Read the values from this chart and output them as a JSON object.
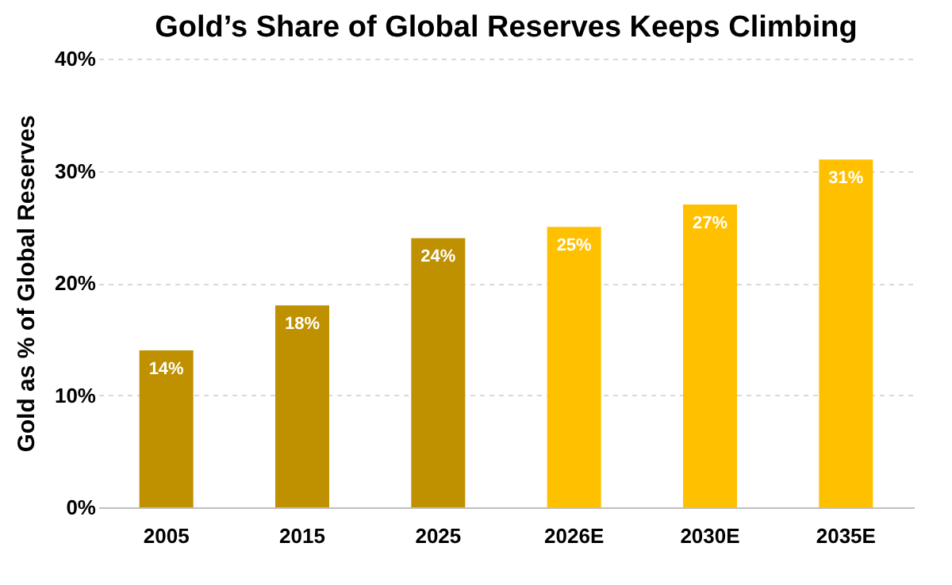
{
  "chart_data": {
    "type": "bar",
    "title": "Gold’s Share of Global Reserves Keeps Climbing",
    "ylabel": "Gold as % of Global Reserves",
    "categories": [
      "2005",
      "2015",
      "2025",
      "2026E",
      "2030E",
      "2035E"
    ],
    "values": [
      14,
      18,
      24,
      25,
      27,
      31
    ],
    "colors": [
      "#bf9000",
      "#bf9000",
      "#bf9000",
      "#ffc000",
      "#ffc000",
      "#ffc000"
    ],
    "value_labels": [
      "14%",
      "18%",
      "24%",
      "25%",
      "27%",
      "31%"
    ],
    "ylim": [
      0,
      40
    ],
    "yticks": [
      {
        "value": 0,
        "label": "0%"
      },
      {
        "value": 10,
        "label": "10%"
      },
      {
        "value": 20,
        "label": "20%"
      },
      {
        "value": 30,
        "label": "30%"
      },
      {
        "value": 40,
        "label": "40%"
      }
    ],
    "grid": "y"
  }
}
